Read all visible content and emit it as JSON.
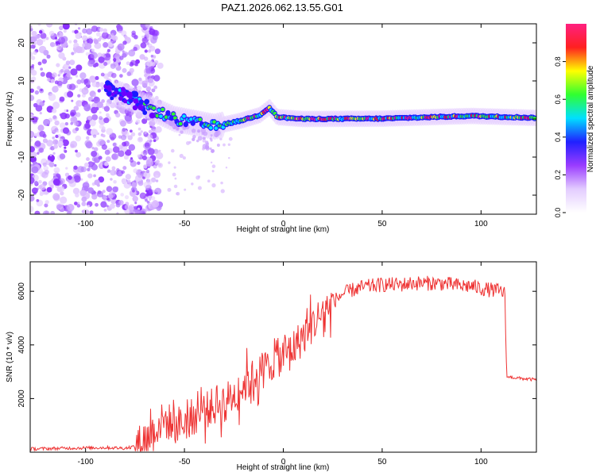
{
  "title": "PAZ1.2026.062.13.55.G01",
  "chart_data": [
    {
      "type": "heatmap",
      "name": "spectrogram",
      "xlabel": "Height of straight line (km)",
      "ylabel": "Frequency (Hz)",
      "xlim": [
        -128,
        128
      ],
      "ylim": [
        -25,
        25
      ],
      "xticks": [
        -100,
        -50,
        0,
        50,
        100
      ],
      "yticks": [
        -20,
        -10,
        0,
        10,
        20
      ],
      "colorbar": {
        "label": "Normalized spectral amplitude",
        "range": [
          0,
          1
        ],
        "ticks": [
          0.0,
          0.2,
          0.4,
          0.6,
          0.8
        ],
        "colors": [
          "#ffffff",
          "#e3ccff",
          "#9a3cff",
          "#2020ff",
          "#00e0ff",
          "#30ff30",
          "#ffff00",
          "#ff2020",
          "#ff2080"
        ]
      },
      "frequency_track": [
        {
          "x": -128,
          "f": null,
          "desc": "noise"
        },
        {
          "x": -90,
          "f": 8
        },
        {
          "x": -80,
          "f": 6
        },
        {
          "x": -68,
          "f": 3
        },
        {
          "x": -55,
          "f": 0
        },
        {
          "x": -35,
          "f": -2
        },
        {
          "x": -22,
          "f": -0.5
        },
        {
          "x": -12,
          "f": 1
        },
        {
          "x": -7,
          "f": 3
        },
        {
          "x": -3,
          "f": 0.5
        },
        {
          "x": 10,
          "f": 0
        },
        {
          "x": 50,
          "f": 0.1
        },
        {
          "x": 95,
          "f": 0.8
        },
        {
          "x": 128,
          "f": 0.3
        }
      ]
    },
    {
      "type": "line",
      "name": "snr",
      "xlabel": "Height of straight line (km)",
      "ylabel": "SNR (10 * v/v)",
      "xlim": [
        -128,
        128
      ],
      "ylim": [
        0,
        7100
      ],
      "xticks": [
        -100,
        -50,
        0,
        50,
        100
      ],
      "yticks": [
        2000,
        4000,
        6000
      ],
      "color": "#ee3333",
      "series": [
        {
          "name": "SNR",
          "x": [
            -128,
            -110,
            -90,
            -80,
            -75,
            -70,
            -65,
            -60,
            -55,
            -50,
            -45,
            -40,
            -35,
            -30,
            -25,
            -20,
            -15,
            -10,
            -5,
            0,
            5,
            10,
            15,
            20,
            25,
            30,
            35,
            40,
            45,
            50,
            55,
            60,
            65,
            70,
            75,
            80,
            85,
            90,
            95,
            100,
            105,
            110,
            112,
            113,
            115,
            120,
            128
          ],
          "values": [
            120,
            150,
            170,
            150,
            220,
            450,
            900,
            1200,
            1000,
            1100,
            1350,
            1550,
            1700,
            1900,
            2100,
            2500,
            2800,
            3100,
            3400,
            3600,
            3900,
            4300,
            4800,
            5200,
            5600,
            5900,
            6050,
            6150,
            6200,
            6250,
            6250,
            6250,
            6300,
            6300,
            6300,
            6300,
            6250,
            6200,
            6200,
            6100,
            6050,
            6000,
            5950,
            2800,
            2800,
            2750,
            2700
          ]
        }
      ]
    }
  ]
}
